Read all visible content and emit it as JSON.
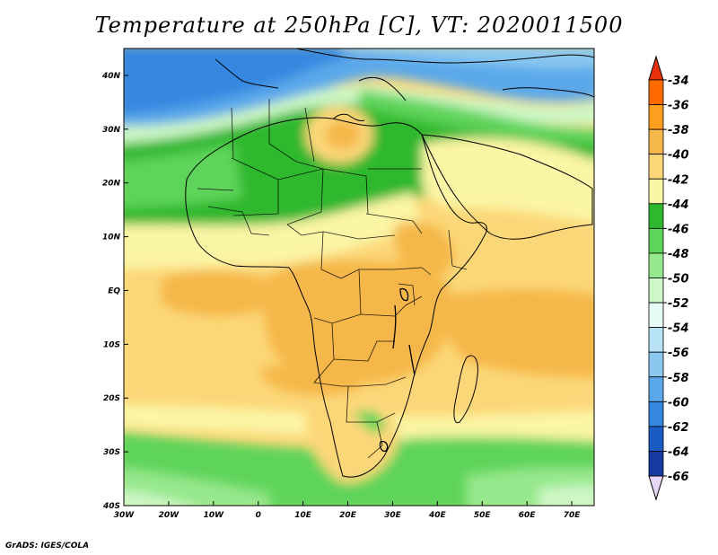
{
  "title": "Temperature at 250hPa [C], VT: 2020011500",
  "credit": "GrADS: IGES/COLA",
  "map": {
    "lon_range": [
      -30,
      75
    ],
    "lat_range": [
      -40,
      45
    ],
    "lon_ticks": [
      {
        "value": -30,
        "label": "30W"
      },
      {
        "value": -20,
        "label": "20W"
      },
      {
        "value": -10,
        "label": "10W"
      },
      {
        "value": 0,
        "label": "0"
      },
      {
        "value": 10,
        "label": "10E"
      },
      {
        "value": 20,
        "label": "20E"
      },
      {
        "value": 30,
        "label": "30E"
      },
      {
        "value": 40,
        "label": "40E"
      },
      {
        "value": 50,
        "label": "50E"
      },
      {
        "value": 60,
        "label": "60E"
      },
      {
        "value": 70,
        "label": "70E"
      }
    ],
    "lat_ticks": [
      {
        "value": 40,
        "label": "40N"
      },
      {
        "value": 30,
        "label": "30N"
      },
      {
        "value": 20,
        "label": "20N"
      },
      {
        "value": 10,
        "label": "10N"
      },
      {
        "value": 0,
        "label": "EQ"
      },
      {
        "value": -10,
        "label": "10S"
      },
      {
        "value": -20,
        "label": "20S"
      },
      {
        "value": -30,
        "label": "30S"
      },
      {
        "value": -40,
        "label": "40S"
      }
    ]
  },
  "colorbar": {
    "levels": [
      -34,
      -36,
      -38,
      -40,
      -42,
      -44,
      -46,
      -48,
      -50,
      -52,
      -54,
      -56,
      -58,
      -60,
      -62,
      -64,
      -66
    ],
    "colors": [
      "#e8320a",
      "#ff6a00",
      "#ff9e1e",
      "#f5b74a",
      "#fcd778",
      "#fbf5a6",
      "#2eb82e",
      "#5ed45a",
      "#96e88c",
      "#cdf7c6",
      "#e6fcf6",
      "#b8e3f7",
      "#8ac8f0",
      "#5aa8ea",
      "#3587e0",
      "#1a5cc4",
      "#163aa0",
      "#0f1f78"
    ],
    "top_color": "#e8320a",
    "bottom_color": "#e8d8f8"
  }
}
